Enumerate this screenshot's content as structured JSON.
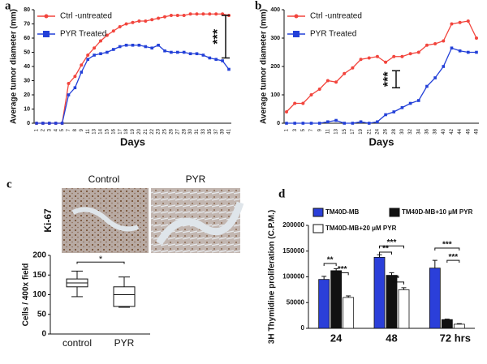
{
  "chart_data": [
    {
      "type": "line",
      "panel": "a",
      "x_label": "Days",
      "y_label": "Average tumor diameter (mm)",
      "categories": [
        "1",
        "2",
        "3",
        "4",
        "5",
        "7",
        "8",
        "9",
        "11",
        "13",
        "14",
        "15",
        "16",
        "17",
        "18",
        "19",
        "20",
        "21",
        "22",
        "23",
        "25",
        "26",
        "27",
        "28",
        "30",
        "31",
        "33",
        "35",
        "37",
        "39",
        "41"
      ],
      "series": [
        {
          "name": "Ctrl -untreated",
          "color": "#f2453d",
          "values": [
            0,
            0,
            0,
            0,
            0,
            28,
            33,
            41,
            48,
            53,
            58,
            62,
            65,
            68,
            70,
            71,
            72,
            72,
            73,
            74,
            75,
            76,
            76,
            76,
            77,
            77,
            77,
            77,
            77,
            77,
            76
          ]
        },
        {
          "name": "PYR  Treated",
          "color": "#2340d8",
          "values": [
            0,
            0,
            0,
            0,
            0,
            20,
            25,
            36,
            45,
            48,
            49,
            50,
            52,
            54,
            55,
            55,
            55,
            54,
            53,
            55,
            51,
            50,
            50,
            50,
            49,
            49,
            48,
            46,
            45,
            44,
            38
          ]
        }
      ],
      "ylim": [
        0,
        80
      ],
      "yticks": [
        0,
        10,
        20,
        30,
        40,
        50,
        60,
        70,
        80
      ],
      "annotations": [
        "***"
      ]
    },
    {
      "type": "line",
      "panel": "b",
      "x_label": "Days",
      "y_label": "Average tumor diameter (mm)",
      "categories": [
        "1",
        "3",
        "5",
        "7",
        "9",
        "11",
        "13",
        "15",
        "17",
        "19",
        "21",
        "24",
        "26",
        "28",
        "30",
        "32",
        "34",
        "36",
        "38",
        "40",
        "42",
        "44",
        "46",
        "48"
      ],
      "series": [
        {
          "name": "Ctrl -untreated",
          "color": "#f2453d",
          "values": [
            40,
            70,
            70,
            100,
            120,
            150,
            145,
            175,
            195,
            225,
            230,
            235,
            215,
            235,
            235,
            245,
            250,
            275,
            280,
            290,
            350,
            355,
            360,
            300
          ]
        },
        {
          "name": "PYR  Treated",
          "color": "#2340d8",
          "values": [
            0,
            0,
            0,
            0,
            0,
            5,
            10,
            0,
            0,
            5,
            0,
            5,
            30,
            40,
            55,
            70,
            80,
            130,
            160,
            200,
            265,
            255,
            250,
            250
          ]
        }
      ],
      "ylim": [
        0,
        400
      ],
      "yticks": [
        0,
        100,
        200,
        300,
        400
      ],
      "annotations": [
        "***"
      ]
    },
    {
      "type": "box",
      "panel": "c",
      "stain": "Ki-67",
      "image_labels": [
        "Control",
        "PYR"
      ],
      "y_label": "Cells / 400x field",
      "categories": [
        "control",
        "PYR"
      ],
      "boxes": [
        {
          "min": 95,
          "q1": 120,
          "median": 130,
          "q3": 140,
          "max": 160
        },
        {
          "min": 68,
          "q1": 70,
          "median": 100,
          "q3": 120,
          "max": 145
        }
      ],
      "ylim": [
        0,
        200
      ],
      "yticks": [
        0,
        50,
        100,
        150,
        200
      ],
      "annotations": [
        "*"
      ]
    },
    {
      "type": "bar",
      "panel": "d",
      "y_label": "3H Thymidine proliferation (C.P.M.)",
      "categories": [
        "24",
        "48",
        "72 hrs"
      ],
      "series": [
        {
          "name": "TM40D-MB",
          "color": "#2b3fd9",
          "values": [
            95000,
            138000,
            117000
          ],
          "errors": [
            6000,
            5000,
            15000
          ]
        },
        {
          "name": "TM40D-MB+10 μM PYR",
          "color": "#111111",
          "values": [
            112000,
            103000,
            17000
          ],
          "errors": [
            4000,
            5000,
            1000
          ]
        },
        {
          "name": "TM40D-MB+20 μM PYR",
          "color": "#ffffff",
          "values": [
            60000,
            75000,
            8000
          ],
          "errors": [
            3000,
            4000,
            1000
          ]
        }
      ],
      "ylim": [
        0,
        200000
      ],
      "yticks": [
        0,
        50000,
        100000,
        150000,
        200000
      ],
      "annotations": [
        "**",
        "***",
        "***",
        "**",
        "*",
        "***",
        "***"
      ]
    }
  ]
}
